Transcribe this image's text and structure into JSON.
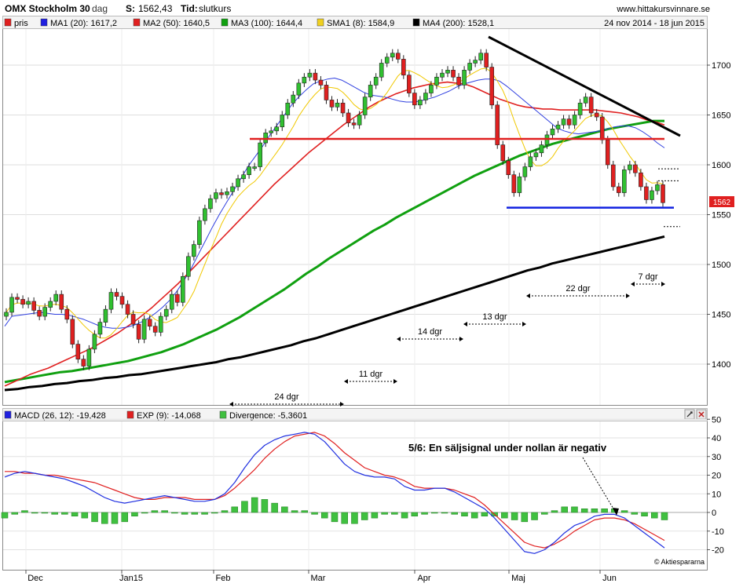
{
  "header": {
    "symbol": "OMX Stockholm 30",
    "period": "dag",
    "s_label": "S:",
    "s_value": "1562,43",
    "tid_label": "Tid:",
    "tid_value": "slutkurs",
    "site": "www.hittakursvinnare.se"
  },
  "legend": {
    "items": [
      {
        "label": "pris",
        "color": "#e02020"
      },
      {
        "label": "MA1 (20): 1617,2",
        "color": "#2020e0"
      },
      {
        "label": "MA2 (50): 1640,5",
        "color": "#e02020"
      },
      {
        "label": "MA3 (100): 1644,4",
        "color": "#10a010"
      },
      {
        "label": "SMA1 (8): 1584,9",
        "color": "#f0d020"
      },
      {
        "label": "MA4 (200): 1528,1",
        "color": "#000000"
      }
    ],
    "date_range": "24 nov 2014 - 18 jun 2015"
  },
  "macd_legend": {
    "items": [
      {
        "label": "MACD (26, 12): -19,428",
        "color": "#2020e0"
      },
      {
        "label": "EXP (9): -14,068",
        "color": "#e02020"
      },
      {
        "label": "Divergence: -5,3601",
        "color": "#40c040"
      }
    ]
  },
  "annotation": "5/6: En säljsignal under nollan är negativ",
  "copyright": "© Aktiespararna",
  "price_badge": "1562",
  "chart_data": [
    {
      "type": "candlestick",
      "title": "OMX Stockholm 30",
      "ylim": [
        1368,
        1728
      ],
      "y_ticks": [
        1400,
        1450,
        1500,
        1550,
        1600,
        1650,
        1700
      ],
      "x_ticks": [
        "Dec",
        "Jan15",
        "Feb",
        "Mar",
        "Apr",
        "Maj",
        "Jun"
      ],
      "closes": [
        1452,
        1467,
        1465,
        1460,
        1463,
        1454,
        1448,
        1457,
        1463,
        1470,
        1455,
        1445,
        1420,
        1405,
        1398,
        1415,
        1430,
        1442,
        1455,
        1472,
        1468,
        1460,
        1450,
        1440,
        1425,
        1445,
        1438,
        1432,
        1448,
        1455,
        1470,
        1462,
        1488,
        1508,
        1520,
        1544,
        1556,
        1566,
        1572,
        1570,
        1573,
        1578,
        1586,
        1590,
        1598,
        1598,
        1622,
        1632,
        1634,
        1638,
        1650,
        1662,
        1670,
        1682,
        1688,
        1692,
        1685,
        1680,
        1665,
        1658,
        1662,
        1652,
        1642,
        1640,
        1650,
        1668,
        1680,
        1688,
        1702,
        1708,
        1712,
        1706,
        1690,
        1672,
        1660,
        1665,
        1672,
        1680,
        1688,
        1692,
        1695,
        1688,
        1680,
        1695,
        1702,
        1705,
        1712,
        1698,
        1660,
        1620,
        1604,
        1590,
        1572,
        1588,
        1598,
        1608,
        1612,
        1620,
        1630,
        1636,
        1640,
        1646,
        1640,
        1650,
        1662,
        1668,
        1652,
        1648,
        1625,
        1600,
        1578,
        1572,
        1595,
        1600,
        1592,
        1578,
        1565,
        1574,
        1580,
        1562
      ],
      "ma20": [
        1438,
        1448,
        1449,
        1450,
        1451,
        1452,
        1451,
        1450,
        1450,
        1449,
        1447,
        1445,
        1442,
        1439,
        1437,
        1436,
        1436,
        1437,
        1439,
        1442,
        1446,
        1451,
        1457,
        1464,
        1473,
        1484,
        1496,
        1510,
        1524,
        1538,
        1551,
        1563,
        1575,
        1587,
        1599,
        1609,
        1619,
        1630,
        1640,
        1650,
        1660,
        1668,
        1675,
        1681,
        1684,
        1686,
        1687,
        1685,
        1681,
        1677,
        1673,
        1670,
        1669,
        1668,
        1666,
        1664,
        1663,
        1663,
        1664,
        1666,
        1668,
        1671,
        1674,
        1678,
        1681,
        1683,
        1685,
        1686,
        1686,
        1684,
        1679,
        1673,
        1667,
        1661,
        1655,
        1649,
        1643,
        1637,
        1634,
        1632,
        1631,
        1632,
        1633,
        1634,
        1636,
        1638,
        1639,
        1639,
        1637,
        1633,
        1628,
        1622,
        1617
      ],
      "ma50": [
        1378,
        1382,
        1386,
        1390,
        1393,
        1396,
        1400,
        1404,
        1408,
        1412,
        1416,
        1421,
        1426,
        1431,
        1437,
        1443,
        1450,
        1457,
        1465,
        1473,
        1481,
        1490,
        1499,
        1508,
        1517,
        1526,
        1535,
        1544,
        1553,
        1562,
        1571,
        1580,
        1588,
        1596,
        1604,
        1612,
        1619,
        1626,
        1633,
        1640,
        1646,
        1652,
        1658,
        1663,
        1667,
        1671,
        1674,
        1677,
        1679,
        1681,
        1682,
        1683,
        1682,
        1681,
        1678,
        1674,
        1670,
        1666,
        1663,
        1660,
        1658,
        1657,
        1656,
        1656,
        1655,
        1655,
        1655,
        1655,
        1655,
        1654,
        1653,
        1652,
        1650,
        1648,
        1645,
        1643,
        1640
      ],
      "ma100": [
        1382,
        1384,
        1386,
        1388,
        1390,
        1392,
        1393,
        1395,
        1397,
        1399,
        1401,
        1403,
        1406,
        1409,
        1412,
        1416,
        1420,
        1425,
        1430,
        1435,
        1441,
        1447,
        1454,
        1461,
        1468,
        1475,
        1483,
        1491,
        1498,
        1506,
        1513,
        1520,
        1527,
        1534,
        1540,
        1547,
        1553,
        1559,
        1565,
        1571,
        1577,
        1583,
        1589,
        1594,
        1599,
        1604,
        1609,
        1613,
        1617,
        1621,
        1624,
        1627,
        1630,
        1633,
        1636,
        1638,
        1640,
        1642,
        1644,
        1644
      ],
      "ma200": [
        1374,
        1375,
        1377,
        1378,
        1380,
        1381,
        1383,
        1384,
        1386,
        1387,
        1389,
        1390,
        1392,
        1394,
        1396,
        1398,
        1400,
        1402,
        1405,
        1407,
        1410,
        1413,
        1416,
        1419,
        1423,
        1426,
        1430,
        1434,
        1438,
        1442,
        1446,
        1450,
        1454,
        1458,
        1462,
        1466,
        1470,
        1474,
        1478,
        1482,
        1486,
        1490,
        1494,
        1497,
        1501,
        1504,
        1507,
        1510,
        1513,
        1516,
        1519,
        1522,
        1525,
        1528
      ],
      "trend_lines": [
        {
          "name": "resistance",
          "from": [
            1625,
            1720
          ],
          "to": [
            1625,
            1630
          ]
        },
        {
          "name": "support_red",
          "value": 1626
        },
        {
          "name": "support_blue",
          "value": 1557
        }
      ],
      "cycle_labels": [
        "24 dgr",
        "11 dgr",
        "14 dgr",
        "13 dgr",
        "22 dgr",
        "7 dgr"
      ]
    },
    {
      "type": "macd",
      "ylim": [
        -22,
        50
      ],
      "y_ticks": [
        -20,
        -10,
        0,
        10,
        20,
        30,
        40,
        50
      ],
      "macd": [
        19,
        21,
        22,
        21,
        20,
        19,
        18,
        16,
        14,
        11,
        8,
        6,
        5,
        6,
        7,
        8,
        9,
        8,
        7,
        6,
        6,
        7,
        10,
        16,
        24,
        31,
        36,
        39,
        41,
        42,
        43,
        42,
        38,
        32,
        26,
        22,
        20,
        19,
        19,
        18,
        14,
        12,
        12,
        13,
        13,
        11,
        8,
        5,
        2,
        -3,
        -9,
        -15,
        -21,
        -22,
        -20,
        -16,
        -11,
        -7,
        -5,
        -2,
        -1,
        -1,
        -3,
        -7,
        -11,
        -15,
        -19
      ],
      "exp": [
        22,
        22,
        21,
        21,
        20,
        20,
        19,
        18,
        17,
        16,
        14,
        12,
        10,
        8,
        7,
        7,
        8,
        8,
        8,
        7,
        7,
        7,
        9,
        13,
        18,
        23,
        29,
        34,
        38,
        41,
        42,
        43,
        41,
        37,
        32,
        28,
        24,
        22,
        20,
        19,
        17,
        14,
        13,
        13,
        13,
        12,
        10,
        8,
        4,
        -1,
        -6,
        -11,
        -16,
        -18,
        -19,
        -17,
        -14,
        -10,
        -7,
        -4,
        -3,
        -3,
        -4,
        -6,
        -9,
        -12,
        -15
      ],
      "divergence": [
        -3,
        -1,
        1,
        0,
        0,
        -1,
        -1,
        -2,
        -3,
        -5,
        -6,
        -6,
        -5,
        -2,
        0,
        1,
        1,
        0,
        -1,
        -1,
        -1,
        0,
        1,
        3,
        6,
        8,
        7,
        5,
        3,
        1,
        1,
        -1,
        -3,
        -5,
        -6,
        -6,
        -4,
        -3,
        -1,
        -1,
        -3,
        -2,
        -1,
        0,
        0,
        -1,
        -2,
        -3,
        -2,
        -2,
        -3,
        -4,
        -5,
        -4,
        -1,
        1,
        3,
        3,
        2,
        2,
        2,
        2,
        1,
        -1,
        -2,
        -3,
        -4
      ]
    }
  ]
}
